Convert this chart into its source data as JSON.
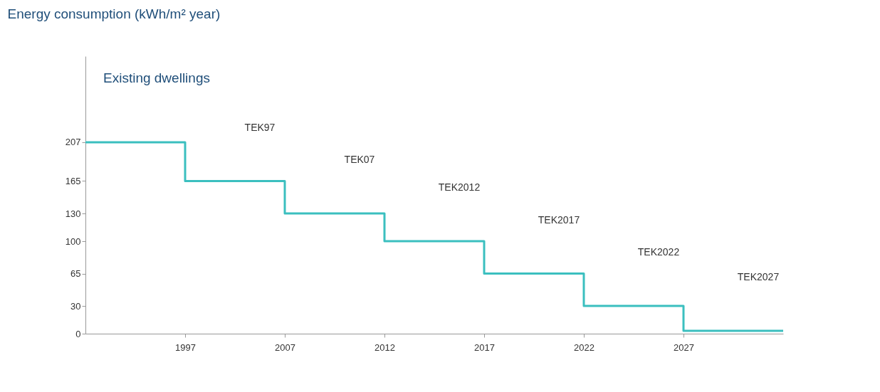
{
  "chart_data": {
    "type": "step",
    "ylabel": "Energy consumption (kWh/m² year)",
    "categories": [
      null,
      "1997",
      "2007",
      "2012",
      "2017",
      "2022",
      "2027",
      null
    ],
    "series": [
      {
        "color": "#3bbfbf",
        "values": [
          207,
          165,
          130,
          100,
          65,
          30,
          3,
          3
        ]
      }
    ],
    "ylim": [
      0,
      300
    ],
    "yticks": [
      0,
      30,
      65,
      100,
      130,
      165,
      207
    ],
    "annotations": [
      "Existing dwellings",
      "TEK97",
      "TEK07",
      "TEK2012",
      "TEK2017",
      "TEK2022",
      "TEK2027"
    ],
    "grid": false,
    "marker": "none",
    "line_style": "solid"
  }
}
